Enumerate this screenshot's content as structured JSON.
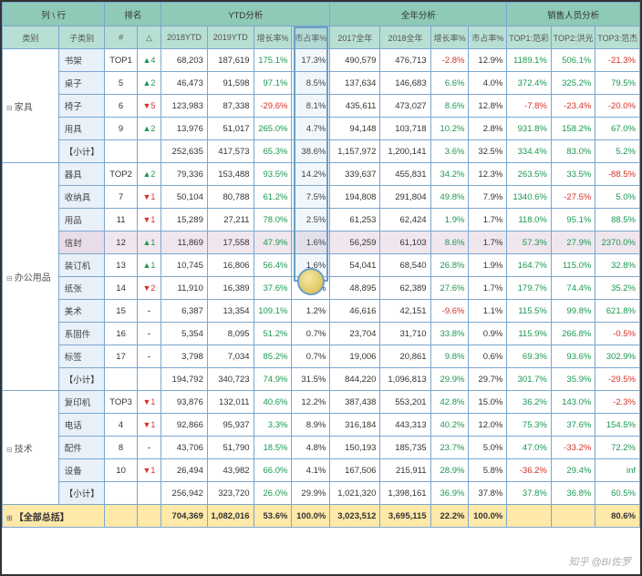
{
  "header_groups": {
    "col_row": "列 \\ 行",
    "rank": "排名",
    "ytd": "YTD分析",
    "year": "全年分析",
    "sales": "销售人员分析"
  },
  "header_cols": {
    "cat": "类别",
    "sub": "子类别",
    "num": "#",
    "delta": "△",
    "y18": "2018YTD",
    "y19": "2019YTD",
    "growth": "增长率%",
    "share": "市占率%",
    "yr17": "2017全年",
    "yr18": "2018全年",
    "yrg": "增长率%",
    "yrs": "市占率%",
    "t1": "TOP1:范彩",
    "t2": "TOP2:洪光",
    "t3": "TOP3:范杰"
  },
  "categories": [
    {
      "name": "家具",
      "rows": [
        {
          "sub": "书架",
          "rank": "TOP1",
          "d": "▲4",
          "dc": "up",
          "y18": "68,203",
          "y19": "187,619",
          "g": "175.1%",
          "gc": "pos",
          "s": "17.3%",
          "yr17": "490,579",
          "yr18": "476,713",
          "yg": "-2.8%",
          "ygc": "neg",
          "ys": "12.9%",
          "t1": "1189.1%",
          "t1c": "pos",
          "t2": "506.1%",
          "t2c": "pos",
          "t3": "-21.3%",
          "t3c": "neg"
        },
        {
          "sub": "桌子",
          "rank": "5",
          "d": "▲2",
          "dc": "up",
          "y18": "46,473",
          "y19": "91,598",
          "g": "97.1%",
          "gc": "pos",
          "s": "8.5%",
          "yr17": "137,634",
          "yr18": "146,683",
          "yg": "6.6%",
          "ygc": "pos",
          "ys": "4.0%",
          "t1": "372.4%",
          "t1c": "pos",
          "t2": "325.2%",
          "t2c": "pos",
          "t3": "79.5%",
          "t3c": "pos"
        },
        {
          "sub": "椅子",
          "rank": "6",
          "d": "▼5",
          "dc": "dn",
          "y18": "123,983",
          "y19": "87,338",
          "g": "-29.6%",
          "gc": "neg",
          "s": "8.1%",
          "yr17": "435,611",
          "yr18": "473,027",
          "yg": "8.6%",
          "ygc": "pos",
          "ys": "12.8%",
          "t1": "-7.8%",
          "t1c": "neg",
          "t2": "-23.4%",
          "t2c": "neg",
          "t3": "-20.0%",
          "t3c": "neg"
        },
        {
          "sub": "用具",
          "rank": "9",
          "d": "▲2",
          "dc": "up",
          "y18": "13,976",
          "y19": "51,017",
          "g": "265.0%",
          "gc": "pos",
          "s": "4.7%",
          "yr17": "94,148",
          "yr18": "103,718",
          "yg": "10.2%",
          "ygc": "pos",
          "ys": "2.8%",
          "t1": "931.8%",
          "t1c": "pos",
          "t2": "158.2%",
          "t2c": "pos",
          "t3": "67.0%",
          "t3c": "pos"
        }
      ],
      "subtotal": {
        "sub": "【小计】",
        "y18": "252,635",
        "y19": "417,573",
        "g": "65.3%",
        "gc": "pos",
        "s": "38.6%",
        "yr17": "1,157,972",
        "yr18": "1,200,141",
        "yg": "3.6%",
        "ygc": "pos",
        "ys": "32.5%",
        "t1": "334.4%",
        "t1c": "pos",
        "t2": "83.0%",
        "t2c": "pos",
        "t3": "5.2%",
        "t3c": "pos"
      }
    },
    {
      "name": "办公用品",
      "rows": [
        {
          "sub": "器具",
          "rank": "TOP2",
          "d": "▲2",
          "dc": "up",
          "y18": "79,336",
          "y19": "153,488",
          "g": "93.5%",
          "gc": "pos",
          "s": "14.2%",
          "yr17": "339,637",
          "yr18": "455,831",
          "yg": "34.2%",
          "ygc": "pos",
          "ys": "12.3%",
          "t1": "263.5%",
          "t1c": "pos",
          "t2": "33.5%",
          "t2c": "pos",
          "t3": "-88.5%",
          "t3c": "neg"
        },
        {
          "sub": "收纳具",
          "rank": "7",
          "d": "▼1",
          "dc": "dn",
          "y18": "50,104",
          "y19": "80,788",
          "g": "61.2%",
          "gc": "pos",
          "s": "7.5%",
          "yr17": "194,808",
          "yr18": "291,804",
          "yg": "49.8%",
          "ygc": "pos",
          "ys": "7.9%",
          "t1": "1340.6%",
          "t1c": "pos",
          "t2": "-27.5%",
          "t2c": "neg",
          "t3": "5.0%",
          "t3c": "pos"
        },
        {
          "sub": "用品",
          "rank": "11",
          "d": "▼1",
          "dc": "dn",
          "y18": "15,289",
          "y19": "27,211",
          "g": "78.0%",
          "gc": "pos",
          "s": "2.5%",
          "yr17": "61,253",
          "yr18": "62,424",
          "yg": "1.9%",
          "ygc": "pos",
          "ys": "1.7%",
          "t1": "118.0%",
          "t1c": "pos",
          "t2": "95.1%",
          "t2c": "pos",
          "t3": "88.5%",
          "t3c": "pos"
        },
        {
          "sub": "信封",
          "rank": "12",
          "d": "▲1",
          "dc": "up",
          "y18": "11,869",
          "y19": "17,558",
          "g": "47.9%",
          "gc": "pos",
          "s": "1.6%",
          "yr17": "56,259",
          "yr18": "61,103",
          "yg": "8.6%",
          "ygc": "pos",
          "ys": "1.7%",
          "t1": "57.3%",
          "t1c": "pos",
          "t2": "27.9%",
          "t2c": "pos",
          "t3": "2370.0%",
          "t3c": "pos",
          "hl": true
        },
        {
          "sub": "装订机",
          "rank": "13",
          "d": "▲1",
          "dc": "up",
          "y18": "10,745",
          "y19": "16,806",
          "g": "56.4%",
          "gc": "pos",
          "s": "1.6%",
          "yr17": "54,041",
          "yr18": "68,540",
          "yg": "26.8%",
          "ygc": "pos",
          "ys": "1.9%",
          "t1": "164.7%",
          "t1c": "pos",
          "t2": "115.0%",
          "t2c": "pos",
          "t3": "32.8%",
          "t3c": "pos"
        },
        {
          "sub": "纸张",
          "rank": "14",
          "d": "▼2",
          "dc": "dn",
          "y18": "11,910",
          "y19": "16,389",
          "g": "37.6%",
          "gc": "pos",
          "s": "1.5%",
          "yr17": "48,895",
          "yr18": "62,389",
          "yg": "27.6%",
          "ygc": "pos",
          "ys": "1.7%",
          "t1": "179.7%",
          "t1c": "pos",
          "t2": "74.4%",
          "t2c": "pos",
          "t3": "35.2%",
          "t3c": "pos"
        },
        {
          "sub": "美术",
          "rank": "15",
          "d": "-",
          "dc": "",
          "y18": "6,387",
          "y19": "13,354",
          "g": "109.1%",
          "gc": "pos",
          "s": "1.2%",
          "yr17": "46,616",
          "yr18": "42,151",
          "yg": "-9.6%",
          "ygc": "neg",
          "ys": "1.1%",
          "t1": "115.5%",
          "t1c": "pos",
          "t2": "99.8%",
          "t2c": "pos",
          "t3": "621.8%",
          "t3c": "pos"
        },
        {
          "sub": "系固件",
          "rank": "16",
          "d": "-",
          "dc": "",
          "y18": "5,354",
          "y19": "8,095",
          "g": "51.2%",
          "gc": "pos",
          "s": "0.7%",
          "yr17": "23,704",
          "yr18": "31,710",
          "yg": "33.8%",
          "ygc": "pos",
          "ys": "0.9%",
          "t1": "115.9%",
          "t1c": "pos",
          "t2": "266.8%",
          "t2c": "pos",
          "t3": "-0.5%",
          "t3c": "neg"
        },
        {
          "sub": "标签",
          "rank": "17",
          "d": "-",
          "dc": "",
          "y18": "3,798",
          "y19": "7,034",
          "g": "85.2%",
          "gc": "pos",
          "s": "0.7%",
          "yr17": "19,006",
          "yr18": "20,861",
          "yg": "9.8%",
          "ygc": "pos",
          "ys": "0.6%",
          "t1": "69.3%",
          "t1c": "pos",
          "t2": "93.6%",
          "t2c": "pos",
          "t3": "302.9%",
          "t3c": "pos"
        }
      ],
      "subtotal": {
        "sub": "【小计】",
        "y18": "194,792",
        "y19": "340,723",
        "g": "74.9%",
        "gc": "pos",
        "s": "31.5%",
        "yr17": "844,220",
        "yr18": "1,096,813",
        "yg": "29.9%",
        "ygc": "pos",
        "ys": "29.7%",
        "t1": "301.7%",
        "t1c": "pos",
        "t2": "35.9%",
        "t2c": "pos",
        "t3": "-29.5%",
        "t3c": "neg"
      }
    },
    {
      "name": "技术",
      "rows": [
        {
          "sub": "复印机",
          "rank": "TOP3",
          "d": "▼1",
          "dc": "dn",
          "y18": "93,876",
          "y19": "132,011",
          "g": "40.6%",
          "gc": "pos",
          "s": "12.2%",
          "yr17": "387,438",
          "yr18": "553,201",
          "yg": "42.8%",
          "ygc": "pos",
          "ys": "15.0%",
          "t1": "36.2%",
          "t1c": "pos",
          "t2": "143.0%",
          "t2c": "pos",
          "t3": "-2.3%",
          "t3c": "neg"
        },
        {
          "sub": "电话",
          "rank": "4",
          "d": "▼1",
          "dc": "dn",
          "y18": "92,866",
          "y19": "95,937",
          "g": "3.3%",
          "gc": "pos",
          "s": "8.9%",
          "yr17": "316,184",
          "yr18": "443,313",
          "yg": "40.2%",
          "ygc": "pos",
          "ys": "12.0%",
          "t1": "75.3%",
          "t1c": "pos",
          "t2": "37.6%",
          "t2c": "pos",
          "t3": "154.5%",
          "t3c": "pos"
        },
        {
          "sub": "配件",
          "rank": "8",
          "d": "-",
          "dc": "",
          "y18": "43,706",
          "y19": "51,790",
          "g": "18.5%",
          "gc": "pos",
          "s": "4.8%",
          "yr17": "150,193",
          "yr18": "185,735",
          "yg": "23.7%",
          "ygc": "pos",
          "ys": "5.0%",
          "t1": "47.0%",
          "t1c": "pos",
          "t2": "-33.2%",
          "t2c": "neg",
          "t3": "72.2%",
          "t3c": "pos"
        },
        {
          "sub": "设备",
          "rank": "10",
          "d": "▼1",
          "dc": "dn",
          "y18": "26,494",
          "y19": "43,982",
          "g": "66.0%",
          "gc": "pos",
          "s": "4.1%",
          "yr17": "167,506",
          "yr18": "215,911",
          "yg": "28.9%",
          "ygc": "pos",
          "ys": "5.8%",
          "t1": "-36.2%",
          "t1c": "neg",
          "t2": "29.4%",
          "t2c": "pos",
          "t3": "inf",
          "t3c": "pos"
        }
      ],
      "subtotal": {
        "sub": "【小计】",
        "y18": "256,942",
        "y19": "323,720",
        "g": "26.0%",
        "gc": "pos",
        "s": "29.9%",
        "yr17": "1,021,320",
        "yr18": "1,398,161",
        "yg": "36.9%",
        "ygc": "pos",
        "ys": "37.8%",
        "t1": "37.8%",
        "t1c": "pos",
        "t2": "36.8%",
        "t2c": "pos",
        "t3": "60.5%",
        "t3c": "pos"
      }
    }
  ],
  "grand": {
    "label": "【全部总括】",
    "y18": "704,369",
    "y19": "1,082,016",
    "g": "53.6%",
    "s": "100.0%",
    "yr17": "3,023,512",
    "yr18": "3,695,115",
    "yg": "22.2%",
    "ys": "100.0%",
    "t1": "",
    "t2": "",
    "t3": "80.6%"
  },
  "watermark": "知乎 @BI佐罗"
}
